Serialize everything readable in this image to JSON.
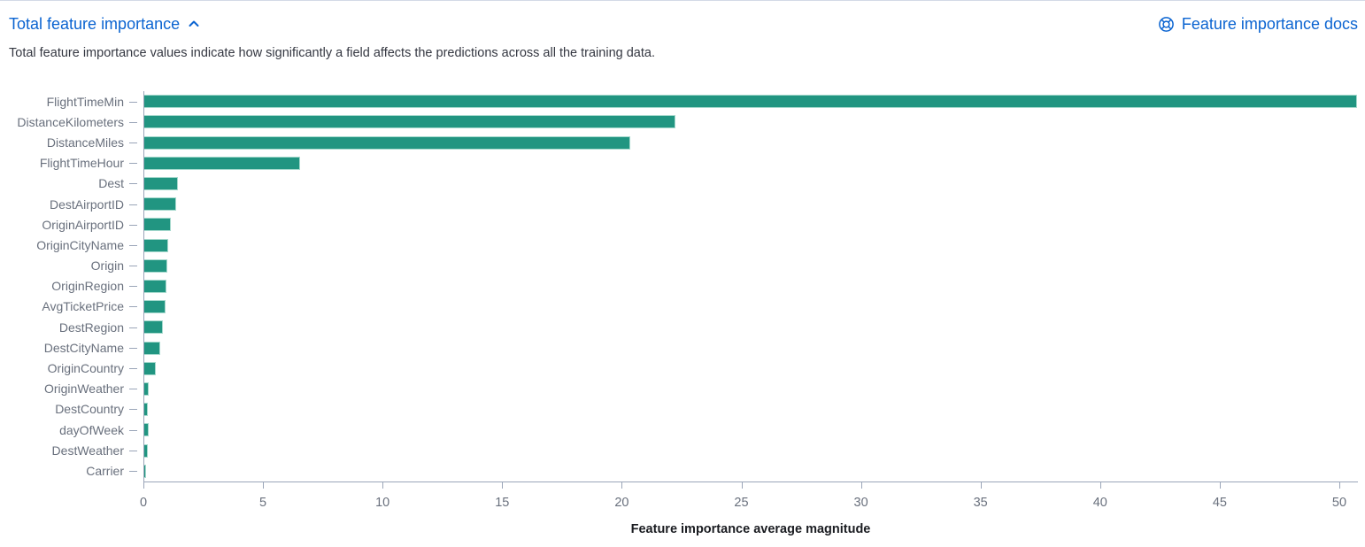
{
  "header": {
    "title": "Total feature importance",
    "collapse_icon": "chevron-up-icon",
    "docs_icon": "life-ring-icon",
    "docs_label": "Feature importance docs",
    "description": "Total feature importance values indicate how significantly a field affects the predictions across all the training data."
  },
  "colors": {
    "bar": "#219581",
    "bar_border": "#a5d9cd",
    "link": "#0b64d1",
    "axis": "#9aa5b8",
    "label": "#69707d",
    "desc": "#343741",
    "axis_title": "#1a1c21",
    "top_border": "#d3dae6"
  },
  "chart_data": {
    "type": "bar",
    "orientation": "horizontal",
    "title": "Total feature importance",
    "xlabel": "Feature importance average magnitude",
    "ylabel": "",
    "categories": [
      "FlightTimeMin",
      "DistanceKilometers",
      "DistanceMiles",
      "FlightTimeHour",
      "Dest",
      "DestAirportID",
      "OriginAirportID",
      "OriginCityName",
      "Origin",
      "OriginRegion",
      "AvgTicketPrice",
      "DestRegion",
      "DestCityName",
      "OriginCountry",
      "OriginWeather",
      "DestCountry",
      "dayOfWeek",
      "DestWeather",
      "Carrier"
    ],
    "values": [
      50.7,
      22.2,
      20.3,
      6.5,
      1.4,
      1.35,
      1.12,
      1.0,
      0.96,
      0.93,
      0.9,
      0.78,
      0.67,
      0.49,
      0.19,
      0.16,
      0.19,
      0.16,
      0.06
    ],
    "x_ticks": [
      0,
      5,
      10,
      15,
      20,
      25,
      30,
      35,
      40,
      45,
      50
    ],
    "xlim": [
      0,
      50.7
    ],
    "grid": false,
    "legend": false
  }
}
